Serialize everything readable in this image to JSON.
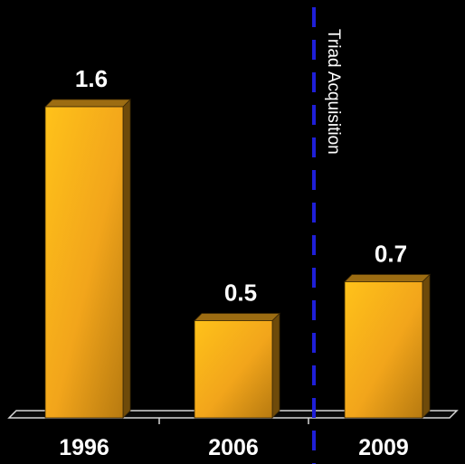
{
  "chart_data": {
    "type": "bar",
    "categories": [
      "1996",
      "2006",
      "2009"
    ],
    "values": [
      1.6,
      0.5,
      0.7
    ],
    "value_labels": [
      "1.6",
      "0.5",
      "0.7"
    ],
    "title": "",
    "xlabel": "",
    "ylabel": "",
    "ylim": [
      0,
      1.6
    ],
    "grid": false,
    "legend": "none",
    "annotation": {
      "text": "Triad Acquisition",
      "between": [
        "2006",
        "2009"
      ],
      "style": "dashed vertical line"
    },
    "colors": {
      "background": "#000000",
      "bar_light": "#ffc21a",
      "bar_mid": "#f2a51b",
      "bar_dark": "#b77a10",
      "bar_side": "#6e4a0a",
      "bar_top": "#9c6c12",
      "axis": "#d8d8d8",
      "annotation_line": "#1f1fd8",
      "text": "#ffffff"
    }
  }
}
